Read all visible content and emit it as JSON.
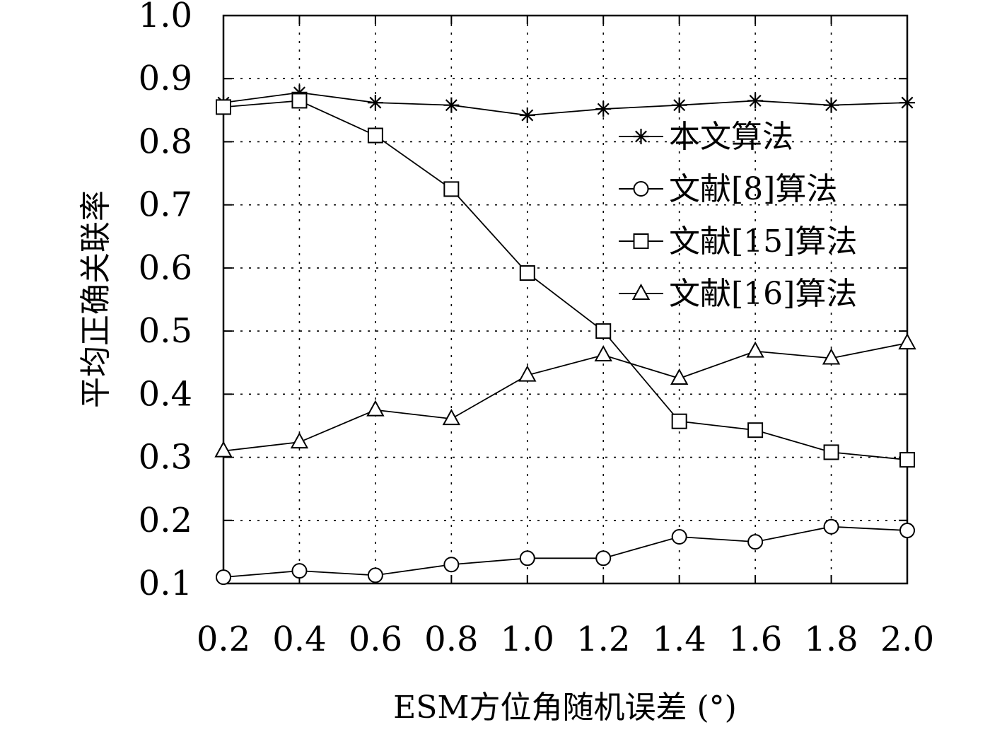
{
  "chart_data": {
    "type": "line",
    "xlabel": "ESM方位角随机误差 (°)",
    "ylabel": "平均正确关联率",
    "x": [
      0.2,
      0.4,
      0.6,
      0.8,
      1.0,
      1.2,
      1.4,
      1.6,
      1.8,
      2.0
    ],
    "x_tick_labels": [
      "0.2",
      "0.4",
      "0.6",
      "0.8",
      "1.0",
      "1.2",
      "1.4",
      "1.6",
      "1.8",
      "2.0"
    ],
    "y_tick_labels": [
      "0.1",
      "0.2",
      "0.3",
      "0.4",
      "0.5",
      "0.6",
      "0.7",
      "0.8",
      "0.9",
      "1.0"
    ],
    "xlim": [
      0.2,
      2.0
    ],
    "ylim": [
      0.1,
      1.0
    ],
    "grid": true,
    "legend_position": "right",
    "series": [
      {
        "name": "本文算法",
        "marker": "star",
        "values": [
          0.862,
          0.878,
          0.862,
          0.858,
          0.842,
          0.852,
          0.858,
          0.865,
          0.858,
          0.862
        ]
      },
      {
        "name": "文献[8]算法",
        "marker": "circle",
        "values": [
          0.11,
          0.12,
          0.113,
          0.13,
          0.14,
          0.14,
          0.174,
          0.166,
          0.19,
          0.184
        ]
      },
      {
        "name": "文献[15]算法",
        "marker": "square",
        "values": [
          0.855,
          0.865,
          0.81,
          0.725,
          0.592,
          0.5,
          0.357,
          0.343,
          0.308,
          0.296
        ]
      },
      {
        "name": "文献[16]算法",
        "marker": "triangle",
        "values": [
          0.31,
          0.324,
          0.375,
          0.361,
          0.43,
          0.462,
          0.425,
          0.468,
          0.457,
          0.481
        ]
      }
    ]
  }
}
